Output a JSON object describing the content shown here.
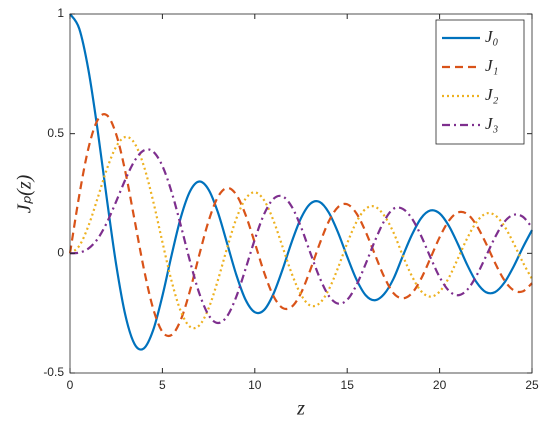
{
  "chart_data": {
    "type": "line",
    "xlabel": "z",
    "ylabel": "Jₚ(z)",
    "x": [
      0,
      0.5,
      1,
      1.5,
      2,
      2.5,
      3,
      3.5,
      4,
      4.5,
      5,
      5.5,
      6,
      6.5,
      7,
      7.5,
      8,
      8.5,
      9,
      9.5,
      10,
      10.5,
      11,
      11.5,
      12,
      12.5,
      13,
      13.5,
      14,
      14.5,
      15,
      15.5,
      16,
      16.5,
      17,
      17.5,
      18,
      18.5,
      19,
      19.5,
      20,
      20.5,
      21,
      21.5,
      22,
      22.5,
      23,
      23.5,
      24,
      24.5,
      25
    ],
    "series": [
      {
        "name": "J₀",
        "color": "#0072BD",
        "linestyle": "solid",
        "values": [
          1,
          0.939,
          0.765,
          0.512,
          0.224,
          -0.048,
          -0.26,
          -0.38,
          -0.397,
          -0.321,
          -0.178,
          -0.007,
          0.151,
          0.26,
          0.3,
          0.266,
          0.172,
          0.042,
          -0.09,
          -0.194,
          -0.246,
          -0.237,
          -0.171,
          -0.068,
          0.048,
          0.147,
          0.207,
          0.215,
          0.171,
          0.088,
          -0.014,
          -0.109,
          -0.175,
          -0.196,
          -0.17,
          -0.107,
          -0.013,
          0.077,
          0.147,
          0.179,
          0.167,
          0.115,
          0.037,
          -0.049,
          -0.121,
          -0.162,
          -0.162,
          -0.123,
          -0.056,
          0.024,
          0.097
        ]
      },
      {
        "name": "J₁",
        "color": "#D95319",
        "linestyle": "dashed",
        "values": [
          0,
          0.242,
          0.44,
          0.558,
          0.577,
          0.497,
          0.339,
          0.137,
          -0.066,
          -0.231,
          -0.328,
          -0.341,
          -0.277,
          -0.154,
          -0.005,
          0.135,
          0.235,
          0.273,
          0.245,
          0.161,
          0.044,
          -0.079,
          -0.177,
          -0.228,
          -0.223,
          -0.166,
          -0.07,
          0.038,
          0.133,
          0.193,
          0.205,
          0.167,
          0.09,
          -0.005,
          -0.098,
          -0.166,
          -0.188,
          -0.167,
          -0.106,
          -0.021,
          0.067,
          0.136,
          0.171,
          0.164,
          0.117,
          0.043,
          -0.04,
          -0.112,
          -0.154,
          -0.159,
          -0.125
        ]
      },
      {
        "name": "J₂",
        "color": "#EDB120",
        "linestyle": "dotted",
        "values": [
          0,
          0.031,
          0.115,
          0.232,
          0.353,
          0.446,
          0.486,
          0.459,
          0.364,
          0.218,
          0.047,
          -0.117,
          -0.243,
          -0.307,
          -0.301,
          -0.23,
          -0.113,
          0.022,
          0.145,
          0.228,
          0.255,
          0.222,
          0.139,
          0.028,
          -0.085,
          -0.173,
          -0.218,
          -0.209,
          -0.152,
          -0.061,
          0.042,
          0.131,
          0.186,
          0.195,
          0.158,
          0.088,
          -0.008,
          -0.095,
          -0.158,
          -0.181,
          -0.16,
          -0.102,
          -0.02,
          0.064,
          0.131,
          0.166,
          0.159,
          0.114,
          0.043,
          -0.037,
          -0.107
        ]
      },
      {
        "name": "J₃",
        "color": "#7E2F8E",
        "linestyle": "dashdot",
        "values": [
          0,
          0.003,
          0.02,
          0.061,
          0.129,
          0.217,
          0.309,
          0.387,
          0.43,
          0.425,
          0.365,
          0.256,
          0.115,
          -0.035,
          -0.168,
          -0.258,
          -0.291,
          -0.263,
          -0.181,
          -0.065,
          0.058,
          0.163,
          0.227,
          0.238,
          0.195,
          0.11,
          0.003,
          -0.1,
          -0.177,
          -0.21,
          -0.194,
          -0.133,
          -0.044,
          0.052,
          0.135,
          0.186,
          0.186,
          0.146,
          0.073,
          -0.016,
          -0.099,
          -0.156,
          -0.175,
          -0.152,
          -0.093,
          -0.014,
          0.067,
          0.131,
          0.161,
          0.153,
          0.108
        ]
      }
    ],
    "xlim": [
      0,
      25
    ],
    "xticks": [
      0,
      5,
      10,
      15,
      20,
      25
    ],
    "ylim": [
      -0.5,
      1
    ],
    "yticks": [
      -0.5,
      0,
      0.5,
      1
    ],
    "grid": false,
    "legend": "top-right"
  }
}
